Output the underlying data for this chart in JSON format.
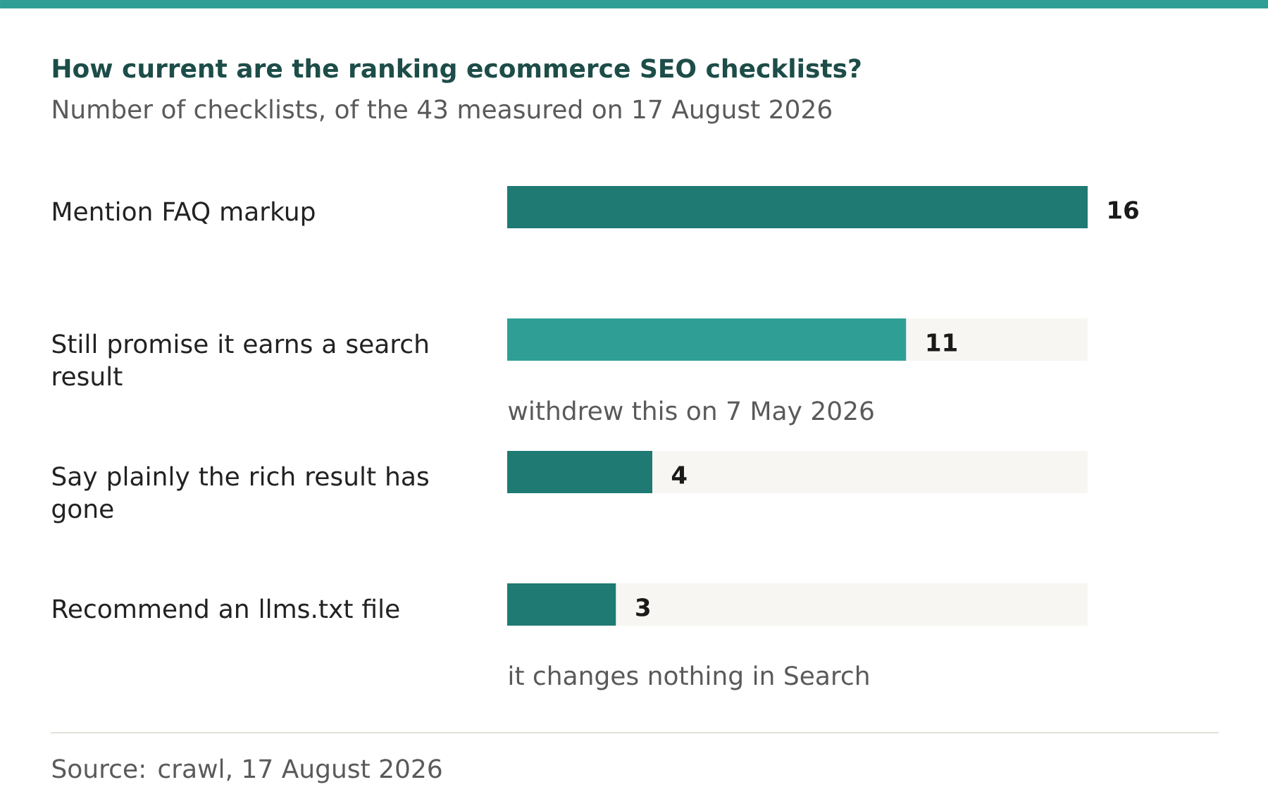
{
  "chart_data": {
    "type": "bar",
    "orientation": "horizontal",
    "stacked": true,
    "title": "How current are the ranking ecommerce SEO checklists?",
    "subtitle": "Number of checklists, of the 43 measured on 17 August 2026",
    "categories": [
      "Mention FAQ markup",
      "Still promise it earns a search result",
      "Say plainly the rich result has gone",
      "Recommend an llms.txt file"
    ],
    "series": [
      {
        "values": [
          16,
          11,
          4,
          3
        ],
        "colors": [
          "#1e7a73",
          "#2f9f96",
          "#1e7a73",
          "#1e7a73"
        ],
        "value_labels": [
          "16",
          "11",
          "4",
          "3"
        ]
      },
      {
        "values": [
          null,
          5,
          12,
          13
        ],
        "color": "#f7f6f2"
      }
    ],
    "xlim": [
      0,
      16
    ],
    "tick_labels": "y",
    "annotations": [
      "withdrew this on 7 May 2026",
      "it changes nothing in Search",
      "Source: crawl, 17 August 2026"
    ]
  }
}
